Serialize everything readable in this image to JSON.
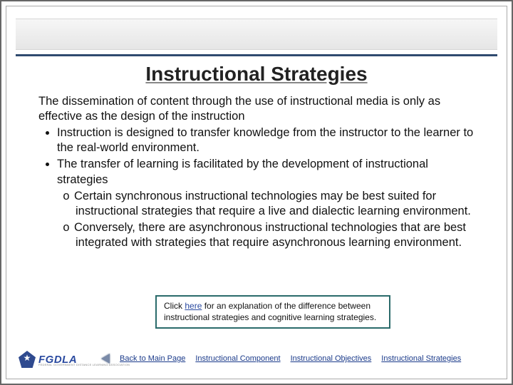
{
  "title": "Instructional Strategies",
  "lead": "The dissemination of content through the use of instructional media is only as effective as the design of the instruction",
  "bullets": [
    {
      "text": "Instruction is designed to transfer knowledge from the instructor to the learner to the real-world environment.",
      "sub": []
    },
    {
      "text": "The transfer of learning is facilitated by the development of instructional strategies",
      "sub": [
        "Certain synchronous instructional technologies may be best suited for instructional strategies that require a live and dialectic learning environment.",
        "Conversely, there are asynchronous instructional technologies that are best integrated with strategies that require asynchronous learning environment."
      ]
    }
  ],
  "callout": {
    "prefix": "Click ",
    "link": "here",
    "suffix": " for an explanation of the difference between instructional strategies and cognitive learning strategies."
  },
  "nav": {
    "back": "Back to Main Page",
    "links": [
      "Instructional Component",
      "Instructional Objectives",
      "Instructional Strategies"
    ]
  },
  "logo_text": "FGDLA",
  "logo_sub": "FEDERAL GOVERNMENT DISTANCE LEARNING ASSOCIATION",
  "colors": {
    "rule": "#2f4a6f",
    "link": "#1a3a8a",
    "callout_border": "#2a6b6b"
  }
}
